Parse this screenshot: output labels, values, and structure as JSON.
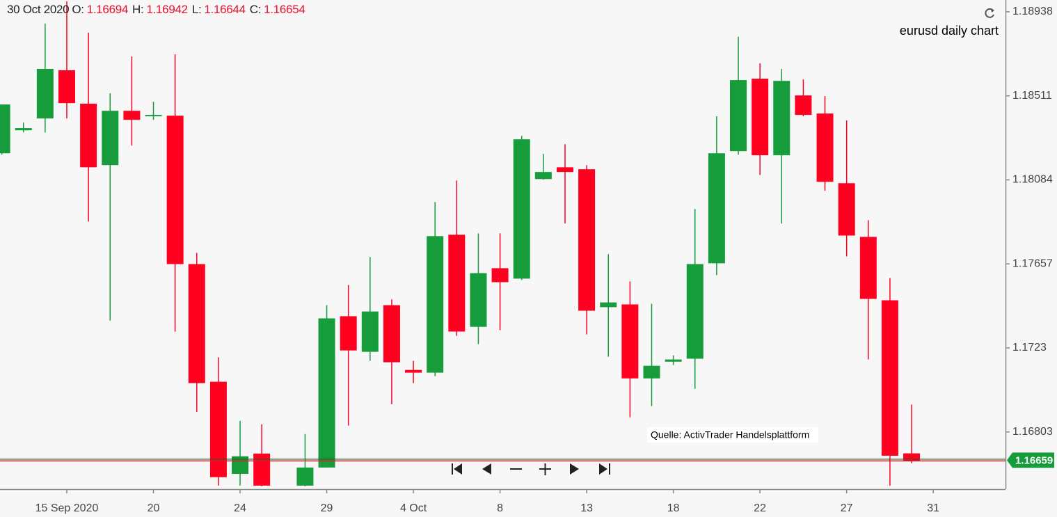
{
  "chart_data": {
    "type": "candlestick",
    "title": "eurusd daily chart",
    "source": "Quelle: ActivTrader Handelsplattform",
    "header": {
      "date": "30 Oct 2020",
      "labels": [
        "O:",
        "H:",
        "L:",
        "C:"
      ]
    },
    "categories": [
      null,
      null,
      null,
      "15 Sep 2020",
      null,
      null,
      null,
      "20",
      null,
      null,
      null,
      "24",
      null,
      null,
      null,
      "29",
      null,
      null,
      null,
      "4 Oct",
      null,
      null,
      null,
      "8",
      null,
      null,
      null,
      "13",
      null,
      null,
      null,
      "18",
      null,
      null,
      null,
      "22",
      null,
      null,
      null,
      "27",
      null,
      null,
      null,
      "31"
    ],
    "open": [
      1.18219,
      1.18336,
      1.18396,
      1.18641,
      1.18471,
      1.18159,
      1.18435,
      1.18407,
      1.1841,
      1.17656,
      1.17058,
      1.1659,
      1.16693,
      null,
      1.1653,
      1.16622,
      1.17391,
      1.1721,
      1.17447,
      1.17118,
      1.17104,
      1.17805,
      1.17337,
      1.17635,
      1.17582,
      1.18088,
      1.18148,
      1.18138,
      1.17437,
      1.17451,
      1.17075,
      1.1716,
      1.17175,
      1.1766,
      1.1823,
      1.18598,
      1.18209,
      1.18513,
      1.18421,
      1.18067,
      1.17794,
      1.17472,
      1.16694,
      null
    ],
    "high": [
      1.18467,
      1.18375,
      1.18878,
      1.18991,
      1.18832,
      1.18524,
      1.18711,
      1.18481,
      1.18722,
      1.17713,
      1.17182,
      1.16859,
      1.16842,
      null,
      1.16792,
      1.17447,
      1.1755,
      1.17692,
      1.17476,
      1.17164,
      1.17971,
      1.18081,
      1.17812,
      1.17812,
      1.18308,
      1.18216,
      1.18265,
      1.18159,
      1.17706,
      1.17568,
      1.17454,
      1.17192,
      1.17936,
      1.18407,
      1.18811,
      1.18676,
      1.18648,
      1.18595,
      1.1851,
      1.18386,
      1.17879,
      1.17585,
      1.16942,
      null
    ],
    "low": [
      1.18212,
      1.18325,
      1.18325,
      1.18396,
      1.17872,
      1.17369,
      1.18258,
      1.18389,
      1.17313,
      1.16905,
      1.1653,
      1.1653,
      1.16527,
      null,
      1.16527,
      1.16622,
      1.16835,
      1.17164,
      1.16944,
      1.17051,
      1.17086,
      1.17291,
      1.17249,
      1.1732,
      1.17575,
      1.18085,
      1.17862,
      1.17299,
      1.17185,
      1.16877,
      1.16934,
      1.17143,
      1.17022,
      1.176,
      1.18212,
      1.18109,
      1.17862,
      1.18407,
      1.18028,
      1.17695,
      1.17171,
      1.1653,
      1.16644,
      null
    ],
    "close": [
      1.18467,
      1.18347,
      1.18648,
      1.18474,
      1.18148,
      1.18435,
      1.18389,
      1.18414,
      1.17656,
      1.17051,
      1.16573,
      1.16679,
      1.1653,
      null,
      1.16622,
      1.1738,
      1.17217,
      1.17415,
      1.17157,
      1.17104,
      1.17798,
      1.17313,
      1.1761,
      1.17564,
      1.1829,
      1.18124,
      1.18124,
      1.17419,
      1.17461,
      1.17075,
      1.17139,
      1.17171,
      1.17656,
      1.18219,
      1.18591,
      1.18209,
      1.18587,
      1.18414,
      1.18074,
      1.17801,
      1.17479,
      1.16682,
      1.16654,
      null
    ],
    "up_color": "#169c3a",
    "down_color": "#ff0020",
    "ylim": [
      1.16512,
      1.18998
    ],
    "yticks": [
      1.16803,
      1.1723,
      1.17657,
      1.18084,
      1.18511,
      1.18938
    ],
    "current_price": 1.16659,
    "current_color": "#169c3a",
    "current_line_color": "#d8202a"
  }
}
